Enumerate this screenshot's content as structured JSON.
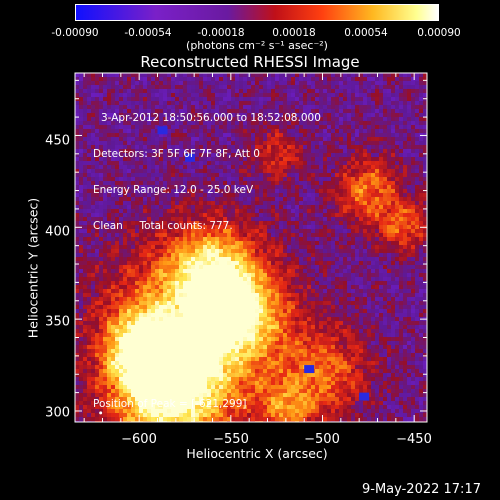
{
  "colorbar": {
    "ticks": [
      "-0.00090",
      "-0.00054",
      "-0.00018",
      "0.00018",
      "0.00054",
      "0.00090"
    ],
    "label": "(photons cm⁻² s⁻¹ asec⁻²)"
  },
  "chart_data": {
    "type": "heatmap",
    "title": "Reconstructed RHESSI Image",
    "xlabel": "Heliocentric X (arcsec)",
    "ylabel": "Heliocentric Y (arcsec)",
    "xlim": [
      -635,
      -443
    ],
    "ylim": [
      294,
      484
    ],
    "xticks": [
      -600,
      -550,
      -500,
      -450
    ],
    "yticks": [
      300,
      350,
      400,
      450
    ],
    "xtick_labels": [
      "−600",
      "−550",
      "−500",
      "−450"
    ],
    "ytick_labels": [
      "300",
      "350",
      "400",
      "450"
    ],
    "colorbar_range": [
      -0.0009,
      0.0009
    ],
    "colormap": [
      "#1010ff",
      "#7a20c8",
      "#6a1aa0",
      "#c01018",
      "#ff4010",
      "#ffb820",
      "#ffff90",
      "#ffffff"
    ],
    "peak_position": [
      -621,
      299
    ]
  },
  "annotations": {
    "line1": "3-Apr-2012 18:50:56.000 to 18:52:08.000",
    "line2": "Detectors: 3F 5F 6F 7F 8F, Att 0",
    "line3": "Energy Range: 12.0 - 25.0 keV",
    "line4": "Clean     Total counts: 777.",
    "peak": "Position of Peak = [-621,299]"
  },
  "timestamp": "9-May-2022 17:17",
  "colors": {
    "background": "#000000",
    "foreground": "#ffffff"
  }
}
